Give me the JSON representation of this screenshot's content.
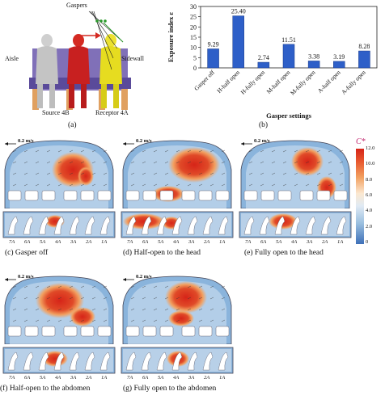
{
  "top_left": {
    "gaspers_label": "Gaspers",
    "aisle_label": "Aisle",
    "sidewall_label": "Sidewall",
    "source_label": "Source 4B",
    "receptor_label": "Receptor 4A",
    "caption": "(a)",
    "colors": {
      "left_seat": "#c8c8c8",
      "middle_seat": "#cc2222",
      "right_seat": "#e8e020",
      "seat_frame": "#7060a8"
    }
  },
  "chart_data": {
    "type": "bar",
    "categories": [
      "Gasper off",
      "H-half open",
      "H-fully open",
      "M-half open",
      "M-fully open",
      "A-half open",
      "A-fully open"
    ],
    "values": [
      9.29,
      25.4,
      2.74,
      11.51,
      3.38,
      3.19,
      8.28
    ],
    "value_labels": [
      "9.29",
      "25.40",
      "2.74",
      "11.51",
      "3.38",
      "3.19",
      "8.28"
    ],
    "title": "",
    "xlabel": "Gasper settings",
    "ylabel": "Exposure index ε",
    "ylim": [
      0,
      30
    ],
    "yticks": [
      0,
      5,
      10,
      15,
      20,
      25,
      30
    ],
    "bar_color": "#2e5fc8",
    "caption": "(b)"
  },
  "colorbar": {
    "title": "C*",
    "ticks": [
      "12.0",
      "10.0",
      "8.0",
      "6.0",
      "4.0",
      "2.0",
      "0"
    ],
    "colors": [
      "#d62418",
      "#f2a060",
      "#fbe8d0",
      "#e0eaf4",
      "#9cc0e0",
      "#3e70b8"
    ]
  },
  "cfd_panels": [
    {
      "caption": "(c) Gasper off",
      "speed": "0.2 m/s"
    },
    {
      "caption": "(d) Half-open to the head",
      "speed": "0.2 m/s"
    },
    {
      "caption": "(e) Fully open to the head",
      "speed": "0.2 m/s"
    },
    {
      "caption": "(f) Half-open to the abdomen",
      "speed": "0.2 m/s"
    },
    {
      "caption": "(g) Fully open to the abdomen",
      "speed": "0.2 m/s"
    }
  ],
  "seat_labels_row": [
    "4F",
    "4E",
    "4D",
    "4C",
    "4B",
    "4A"
  ],
  "seat_labels_column": [
    "7A",
    "6A",
    "5A",
    "4A",
    "3A",
    "2A",
    "1A"
  ]
}
